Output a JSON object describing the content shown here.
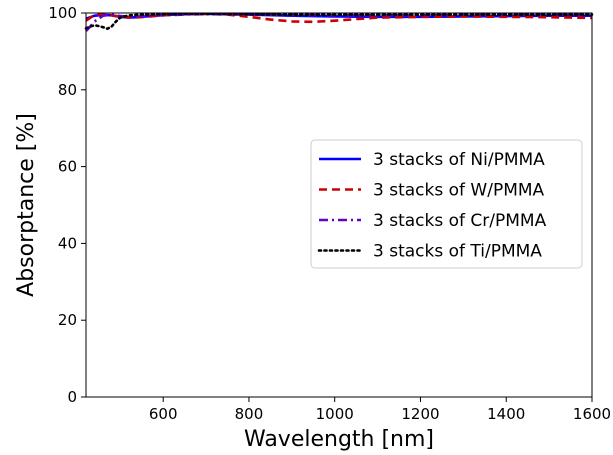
{
  "chart_data": {
    "type": "line",
    "title": "",
    "xlabel": "Wavelength [nm]",
    "ylabel": "Absorptance [%]",
    "xlim": [
      420,
      1600
    ],
    "ylim": [
      0,
      100
    ],
    "xticks": [
      600,
      800,
      1000,
      1200,
      1400,
      1600
    ],
    "yticks": [
      0,
      20,
      40,
      60,
      80,
      100
    ],
    "grid": false,
    "legend_position": "center-right",
    "series": [
      {
        "name": "3 stacks of Ni/PMMA",
        "color": "#0000ff",
        "style": "solid",
        "x": [
          420,
          440,
          460,
          480,
          500,
          520,
          540,
          560,
          580,
          600,
          650,
          700,
          800,
          900,
          1000,
          1100,
          1200,
          1300,
          1400,
          1500,
          1600
        ],
        "y": [
          98.5,
          99.3,
          99.5,
          99.4,
          99.0,
          98.8,
          98.9,
          99.1,
          99.3,
          99.5,
          99.7,
          99.8,
          99.6,
          99.3,
          99.1,
          99.0,
          99.0,
          99.1,
          99.2,
          99.3,
          99.3
        ]
      },
      {
        "name": "3 stacks of W/PMMA",
        "color": "#cc0000",
        "style": "dashed",
        "x": [
          420,
          440,
          460,
          480,
          500,
          530,
          560,
          600,
          650,
          700,
          750,
          800,
          850,
          900,
          950,
          1000,
          1050,
          1100,
          1200,
          1300,
          1400,
          1500,
          1600
        ],
        "y": [
          98.0,
          99.5,
          99.8,
          99.4,
          99.0,
          98.8,
          99.0,
          99.4,
          99.7,
          99.8,
          99.6,
          99.0,
          98.3,
          97.8,
          97.7,
          98.0,
          98.4,
          98.8,
          99.0,
          99.1,
          99.0,
          98.9,
          98.7
        ]
      },
      {
        "name": "3 stacks of Cr/PMMA",
        "color": "#6600cc",
        "style": "dashdot",
        "x": [
          420,
          430,
          440,
          460,
          480,
          500,
          530,
          560,
          600,
          650,
          700,
          800,
          900,
          1000,
          1100,
          1200,
          1300,
          1400,
          1500,
          1600
        ],
        "y": [
          95.3,
          96.5,
          97.8,
          99.3,
          99.6,
          99.2,
          99.0,
          99.2,
          99.4,
          99.6,
          99.7,
          99.6,
          99.5,
          99.4,
          99.4,
          99.4,
          99.5,
          99.5,
          99.5,
          99.5
        ]
      },
      {
        "name": "3 stacks of Ti/PMMA",
        "color": "#000000",
        "style": "dotted",
        "x": [
          420,
          430,
          440,
          450,
          460,
          470,
          480,
          490,
          500,
          520,
          550,
          600,
          650,
          700,
          800,
          900,
          1000,
          1100,
          1200,
          1300,
          1400,
          1500,
          1600
        ],
        "y": [
          96.0,
          96.5,
          96.8,
          96.6,
          96.3,
          95.9,
          96.5,
          97.8,
          98.8,
          99.4,
          99.6,
          99.7,
          99.8,
          99.8,
          99.7,
          99.6,
          99.6,
          99.6,
          99.6,
          99.6,
          99.6,
          99.6,
          99.6
        ]
      }
    ]
  }
}
